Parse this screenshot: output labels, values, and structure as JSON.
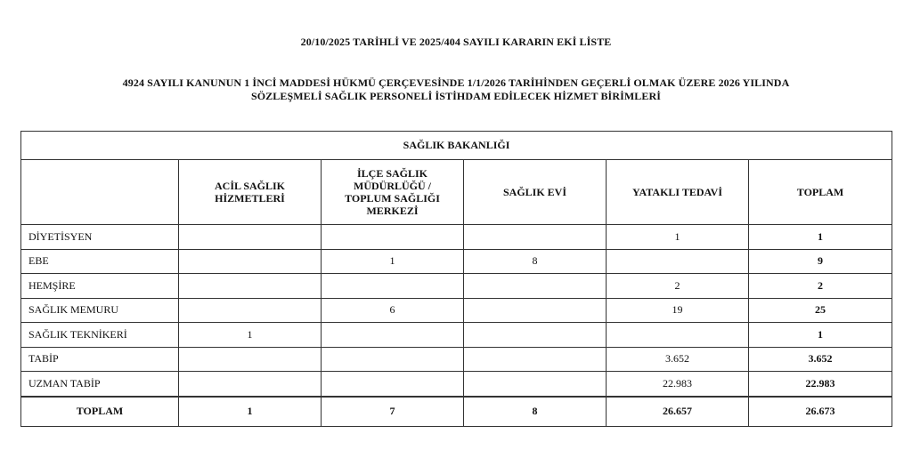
{
  "document": {
    "title_line1": "20/10/2025 TARİHLİ VE 2025/404 SAYILI KARARIN EKİ LİSTE",
    "title_line2": "4924 SAYILI KANUNUN 1 İNCİ MADDESİ HÜKMÜ ÇERÇEVESİNDE 1/1/2026 TARİHİNDEN GEÇERLİ OLMAK ÜZERE 2026 YILINDA",
    "title_line3": "SÖZLEŞMELİ SAĞLIK PERSONELİ İSTİHDAM EDİLECEK HİZMET BİRİMLERİ"
  },
  "table": {
    "group_header": "SAĞLIK BAKANLIĞI",
    "columns": [
      "",
      "ACİL SAĞLIK HİZMETLERİ",
      "İLÇE SAĞLIK MÜDÜRLÜĞÜ / TOPLUM SAĞLIĞI MERKEZİ",
      "SAĞLIK EVİ",
      "YATAKLI TEDAVİ",
      "TOPLAM"
    ],
    "rows": [
      [
        "DİYETİSYEN",
        "",
        "",
        "",
        "1",
        "1"
      ],
      [
        "EBE",
        "",
        "1",
        "8",
        "",
        "9"
      ],
      [
        "HEMŞİRE",
        "",
        "",
        "",
        "2",
        "2"
      ],
      [
        "SAĞLIK MEMURU",
        "",
        "6",
        "",
        "19",
        "25"
      ],
      [
        "SAĞLIK TEKNİKERİ",
        "1",
        "",
        "",
        "",
        "1"
      ],
      [
        "TABİP",
        "",
        "",
        "",
        "3.652",
        "3.652"
      ],
      [
        "UZMAN TABİP",
        "",
        "",
        "",
        "22.983",
        "22.983"
      ]
    ],
    "total_row": [
      "TOPLAM",
      "1",
      "7",
      "8",
      "26.657",
      "26.673"
    ]
  }
}
